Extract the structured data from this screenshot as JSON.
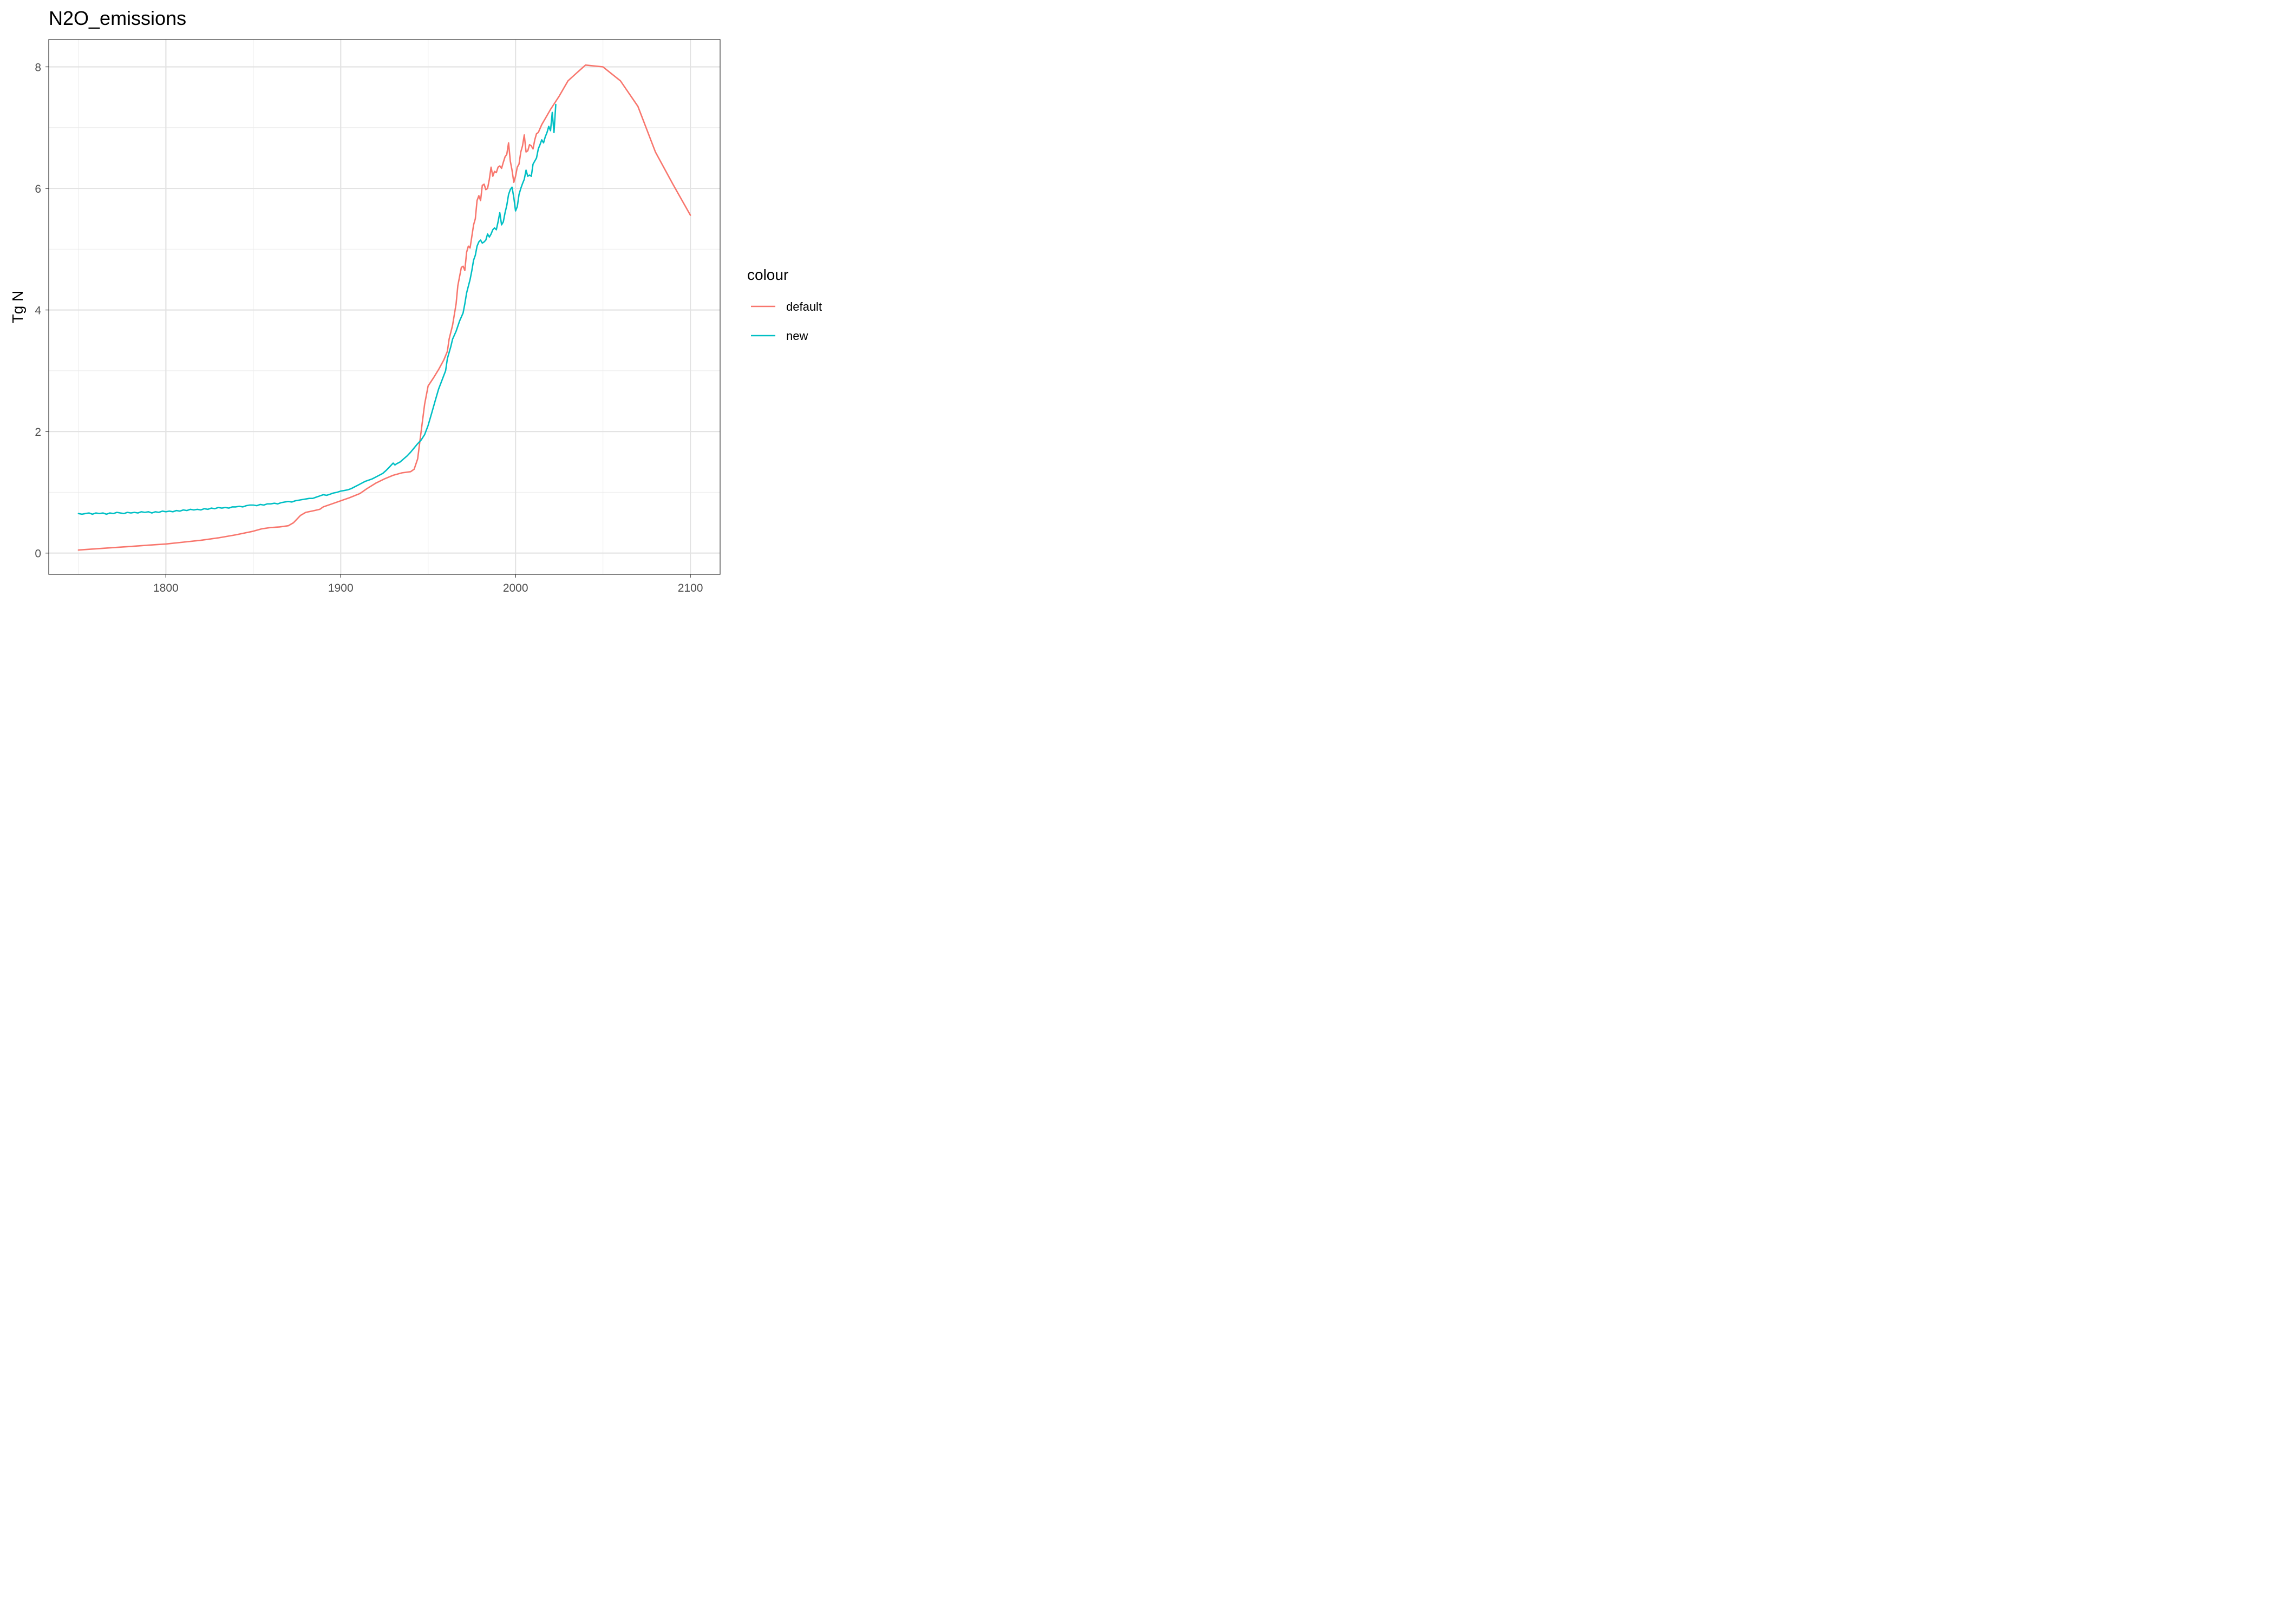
{
  "chart_data": {
    "type": "line",
    "title": "N2O_emissions",
    "xlabel": "",
    "ylabel": "Tg N",
    "xlim": [
      1733,
      2117
    ],
    "ylim": [
      -0.35,
      8.45
    ],
    "x_ticks": [
      1800,
      1900,
      2000,
      2100
    ],
    "y_ticks": [
      0,
      2,
      4,
      6,
      8
    ],
    "x_minor": [
      1750,
      1850,
      1950,
      2050
    ],
    "y_minor": [
      1,
      3,
      5,
      7
    ],
    "grid": true,
    "legend": {
      "title": "colour",
      "position": "right"
    },
    "series": [
      {
        "name": "default",
        "color": "#F8766D",
        "points": [
          [
            1750,
            0.05
          ],
          [
            1760,
            0.07
          ],
          [
            1770,
            0.09
          ],
          [
            1780,
            0.11
          ],
          [
            1790,
            0.13
          ],
          [
            1800,
            0.15
          ],
          [
            1810,
            0.18
          ],
          [
            1820,
            0.21
          ],
          [
            1830,
            0.25
          ],
          [
            1840,
            0.3
          ],
          [
            1850,
            0.36
          ],
          [
            1855,
            0.4
          ],
          [
            1860,
            0.42
          ],
          [
            1865,
            0.43
          ],
          [
            1870,
            0.45
          ],
          [
            1873,
            0.5
          ],
          [
            1877,
            0.62
          ],
          [
            1880,
            0.67
          ],
          [
            1885,
            0.7
          ],
          [
            1888,
            0.72
          ],
          [
            1890,
            0.76
          ],
          [
            1895,
            0.81
          ],
          [
            1900,
            0.86
          ],
          [
            1905,
            0.91
          ],
          [
            1911,
            0.98
          ],
          [
            1915,
            1.06
          ],
          [
            1920,
            1.15
          ],
          [
            1925,
            1.22
          ],
          [
            1930,
            1.28
          ],
          [
            1935,
            1.32
          ],
          [
            1940,
            1.34
          ],
          [
            1942,
            1.38
          ],
          [
            1944,
            1.55
          ],
          [
            1946,
            2.0
          ],
          [
            1948,
            2.45
          ],
          [
            1950,
            2.75
          ],
          [
            1953,
            2.88
          ],
          [
            1956,
            3.02
          ],
          [
            1959,
            3.18
          ],
          [
            1961,
            3.32
          ],
          [
            1962,
            3.52
          ],
          [
            1964,
            3.75
          ],
          [
            1966,
            4.1
          ],
          [
            1967,
            4.4
          ],
          [
            1969,
            4.7
          ],
          [
            1970,
            4.72
          ],
          [
            1971,
            4.65
          ],
          [
            1972,
            4.95
          ],
          [
            1973,
            5.05
          ],
          [
            1974,
            5.02
          ],
          [
            1976,
            5.4
          ],
          [
            1977,
            5.5
          ],
          [
            1978,
            5.8
          ],
          [
            1979,
            5.88
          ],
          [
            1980,
            5.8
          ],
          [
            1981,
            6.05
          ],
          [
            1982,
            6.07
          ],
          [
            1983,
            5.98
          ],
          [
            1984,
            6.0
          ],
          [
            1985,
            6.15
          ],
          [
            1986,
            6.35
          ],
          [
            1987,
            6.2
          ],
          [
            1988,
            6.28
          ],
          [
            1989,
            6.26
          ],
          [
            1990,
            6.35
          ],
          [
            1991,
            6.37
          ],
          [
            1992,
            6.33
          ],
          [
            1993,
            6.43
          ],
          [
            1994,
            6.52
          ],
          [
            1995,
            6.56
          ],
          [
            1996,
            6.75
          ],
          [
            1997,
            6.45
          ],
          [
            1998,
            6.3
          ],
          [
            1999,
            6.1
          ],
          [
            2000,
            6.2
          ],
          [
            2001,
            6.35
          ],
          [
            2002,
            6.4
          ],
          [
            2003,
            6.6
          ],
          [
            2004,
            6.7
          ],
          [
            2005,
            6.88
          ],
          [
            2006,
            6.6
          ],
          [
            2007,
            6.62
          ],
          [
            2008,
            6.72
          ],
          [
            2009,
            6.7
          ],
          [
            2010,
            6.65
          ],
          [
            2011,
            6.8
          ],
          [
            2012,
            6.9
          ],
          [
            2013,
            6.92
          ],
          [
            2015,
            7.05
          ],
          [
            2017,
            7.15
          ],
          [
            2020,
            7.3
          ],
          [
            2025,
            7.52
          ],
          [
            2030,
            7.77
          ],
          [
            2035,
            7.9
          ],
          [
            2040,
            8.03
          ],
          [
            2050,
            8.0
          ],
          [
            2060,
            7.77
          ],
          [
            2070,
            7.35
          ],
          [
            2080,
            6.6
          ],
          [
            2090,
            6.07
          ],
          [
            2100,
            5.56
          ]
        ]
      },
      {
        "name": "new",
        "color": "#00BFC4",
        "points": [
          [
            1750,
            0.65
          ],
          [
            1752,
            0.64
          ],
          [
            1754,
            0.65
          ],
          [
            1756,
            0.66
          ],
          [
            1758,
            0.64
          ],
          [
            1760,
            0.66
          ],
          [
            1762,
            0.65
          ],
          [
            1764,
            0.66
          ],
          [
            1766,
            0.64
          ],
          [
            1768,
            0.66
          ],
          [
            1770,
            0.65
          ],
          [
            1772,
            0.67
          ],
          [
            1774,
            0.66
          ],
          [
            1776,
            0.65
          ],
          [
            1778,
            0.67
          ],
          [
            1780,
            0.66
          ],
          [
            1782,
            0.67
          ],
          [
            1784,
            0.66
          ],
          [
            1786,
            0.68
          ],
          [
            1788,
            0.67
          ],
          [
            1790,
            0.68
          ],
          [
            1792,
            0.66
          ],
          [
            1794,
            0.68
          ],
          [
            1796,
            0.67
          ],
          [
            1798,
            0.69
          ],
          [
            1800,
            0.68
          ],
          [
            1802,
            0.69
          ],
          [
            1804,
            0.68
          ],
          [
            1806,
            0.7
          ],
          [
            1808,
            0.69
          ],
          [
            1810,
            0.71
          ],
          [
            1812,
            0.7
          ],
          [
            1814,
            0.72
          ],
          [
            1816,
            0.71
          ],
          [
            1818,
            0.72
          ],
          [
            1820,
            0.71
          ],
          [
            1822,
            0.73
          ],
          [
            1824,
            0.72
          ],
          [
            1826,
            0.74
          ],
          [
            1828,
            0.73
          ],
          [
            1830,
            0.75
          ],
          [
            1832,
            0.74
          ],
          [
            1834,
            0.75
          ],
          [
            1836,
            0.74
          ],
          [
            1838,
            0.76
          ],
          [
            1840,
            0.76
          ],
          [
            1842,
            0.77
          ],
          [
            1844,
            0.76
          ],
          [
            1846,
            0.78
          ],
          [
            1848,
            0.79
          ],
          [
            1850,
            0.79
          ],
          [
            1852,
            0.78
          ],
          [
            1854,
            0.8
          ],
          [
            1856,
            0.79
          ],
          [
            1858,
            0.81
          ],
          [
            1860,
            0.81
          ],
          [
            1862,
            0.82
          ],
          [
            1864,
            0.81
          ],
          [
            1866,
            0.83
          ],
          [
            1868,
            0.84
          ],
          [
            1870,
            0.85
          ],
          [
            1872,
            0.84
          ],
          [
            1874,
            0.86
          ],
          [
            1876,
            0.87
          ],
          [
            1878,
            0.88
          ],
          [
            1880,
            0.89
          ],
          [
            1882,
            0.9
          ],
          [
            1884,
            0.9
          ],
          [
            1886,
            0.92
          ],
          [
            1888,
            0.94
          ],
          [
            1890,
            0.96
          ],
          [
            1892,
            0.95
          ],
          [
            1894,
            0.97
          ],
          [
            1896,
            0.99
          ],
          [
            1898,
            1.0
          ],
          [
            1900,
            1.02
          ],
          [
            1902,
            1.03
          ],
          [
            1904,
            1.04
          ],
          [
            1906,
            1.06
          ],
          [
            1908,
            1.09
          ],
          [
            1910,
            1.12
          ],
          [
            1912,
            1.15
          ],
          [
            1914,
            1.18
          ],
          [
            1916,
            1.2
          ],
          [
            1918,
            1.22
          ],
          [
            1920,
            1.25
          ],
          [
            1922,
            1.28
          ],
          [
            1924,
            1.31
          ],
          [
            1926,
            1.36
          ],
          [
            1928,
            1.42
          ],
          [
            1930,
            1.48
          ],
          [
            1931,
            1.45
          ],
          [
            1932,
            1.47
          ],
          [
            1934,
            1.5
          ],
          [
            1936,
            1.55
          ],
          [
            1938,
            1.6
          ],
          [
            1940,
            1.66
          ],
          [
            1942,
            1.73
          ],
          [
            1944,
            1.8
          ],
          [
            1946,
            1.86
          ],
          [
            1948,
            1.95
          ],
          [
            1950,
            2.1
          ],
          [
            1952,
            2.3
          ],
          [
            1954,
            2.5
          ],
          [
            1956,
            2.7
          ],
          [
            1958,
            2.85
          ],
          [
            1960,
            3.0
          ],
          [
            1961,
            3.2
          ],
          [
            1963,
            3.4
          ],
          [
            1964,
            3.52
          ],
          [
            1966,
            3.65
          ],
          [
            1968,
            3.82
          ],
          [
            1970,
            3.95
          ],
          [
            1971,
            4.1
          ],
          [
            1972,
            4.28
          ],
          [
            1974,
            4.5
          ],
          [
            1975,
            4.65
          ],
          [
            1976,
            4.82
          ],
          [
            1977,
            4.9
          ],
          [
            1978,
            5.05
          ],
          [
            1979,
            5.12
          ],
          [
            1980,
            5.15
          ],
          [
            1981,
            5.1
          ],
          [
            1982,
            5.12
          ],
          [
            1983,
            5.15
          ],
          [
            1984,
            5.25
          ],
          [
            1985,
            5.2
          ],
          [
            1986,
            5.25
          ],
          [
            1987,
            5.32
          ],
          [
            1988,
            5.35
          ],
          [
            1989,
            5.32
          ],
          [
            1990,
            5.45
          ],
          [
            1991,
            5.6
          ],
          [
            1992,
            5.4
          ],
          [
            1993,
            5.45
          ],
          [
            1994,
            5.6
          ],
          [
            1995,
            5.72
          ],
          [
            1996,
            5.9
          ],
          [
            1997,
            5.98
          ],
          [
            1998,
            6.02
          ],
          [
            1999,
            5.85
          ],
          [
            2000,
            5.63
          ],
          [
            2001,
            5.7
          ],
          [
            2002,
            5.9
          ],
          [
            2003,
            6.0
          ],
          [
            2004,
            6.08
          ],
          [
            2005,
            6.15
          ],
          [
            2006,
            6.3
          ],
          [
            2007,
            6.2
          ],
          [
            2008,
            6.22
          ],
          [
            2009,
            6.2
          ],
          [
            2010,
            6.4
          ],
          [
            2011,
            6.45
          ],
          [
            2012,
            6.5
          ],
          [
            2013,
            6.65
          ],
          [
            2014,
            6.72
          ],
          [
            2015,
            6.8
          ],
          [
            2016,
            6.75
          ],
          [
            2017,
            6.85
          ],
          [
            2018,
            6.92
          ],
          [
            2019,
            7.02
          ],
          [
            2020,
            6.95
          ],
          [
            2021,
            7.25
          ],
          [
            2022,
            6.92
          ],
          [
            2023,
            7.38
          ]
        ]
      }
    ]
  }
}
